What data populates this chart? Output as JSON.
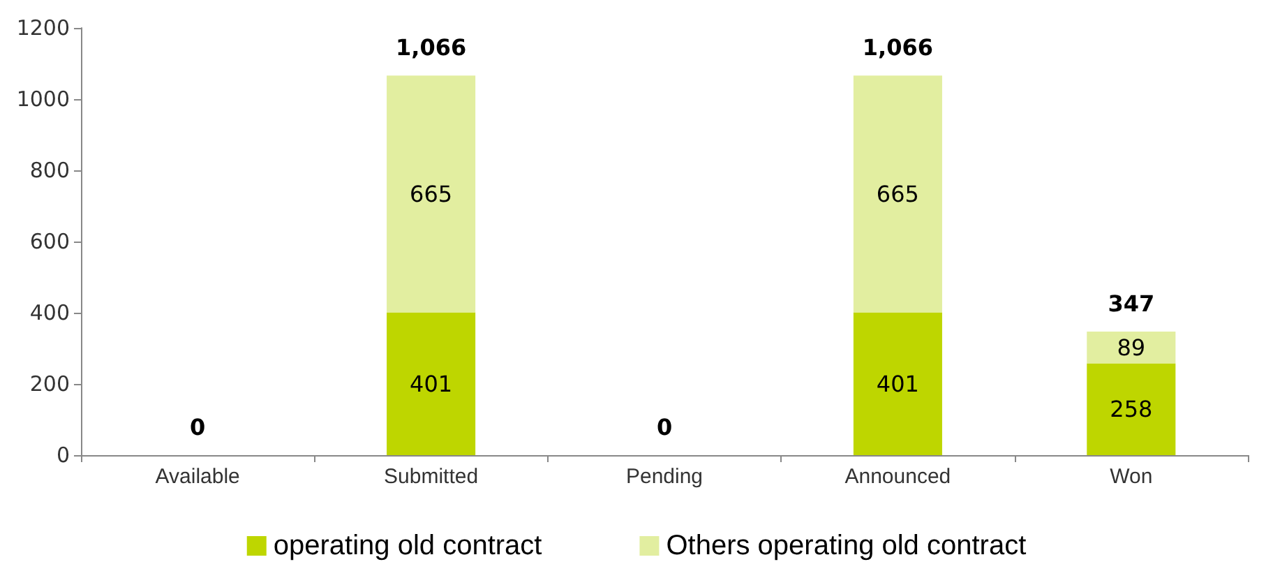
{
  "chart_data": {
    "type": "bar",
    "stacked": true,
    "categories": [
      "Available",
      "Submitted",
      "Pending",
      "Announced",
      "Won"
    ],
    "series": [
      {
        "name": "operating old contract",
        "color": "#bed600",
        "values": [
          0,
          401,
          0,
          401,
          258
        ],
        "value_labels": [
          null,
          "401",
          null,
          "401",
          "258"
        ]
      },
      {
        "name": "Others operating old contract",
        "color": "#e2eea0",
        "values": [
          0,
          665,
          0,
          665,
          89
        ],
        "value_labels": [
          null,
          "665",
          null,
          "665",
          "89"
        ]
      }
    ],
    "totals": [
      "0",
      "1,066",
      "0",
      "1,066",
      "347"
    ],
    "ylim": [
      0,
      1200
    ],
    "yticks": [
      0,
      200,
      400,
      600,
      800,
      1000,
      1200
    ],
    "grid": false,
    "legend": "bottom"
  }
}
